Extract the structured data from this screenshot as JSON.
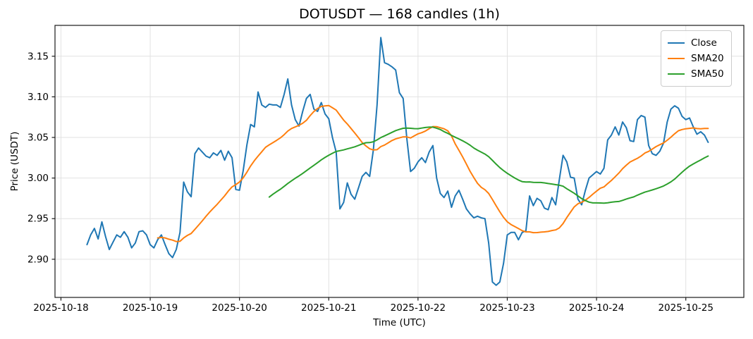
{
  "chart": {
    "title": "DOTUSDT — 168 candles (1h)",
    "xlabel": "Time (UTC)",
    "ylabel": "Price (USDT)"
  },
  "chart_data": {
    "type": "line",
    "title": "DOTUSDT — 168 candles (1h)",
    "xlabel": "Time (UTC)",
    "ylabel": "Price (USDT)",
    "x_unit": "hourly candles (1h each), 168 total",
    "legend_position": "upper right",
    "grid": true,
    "x_tick_labels": [
      "2025-10-18",
      "2025-10-19",
      "2025-10-20",
      "2025-10-21",
      "2025-10-22",
      "2025-10-23",
      "2025-10-24",
      "2025-10-25"
    ],
    "x_tick_hours": [
      -7,
      17,
      41,
      65,
      89,
      113,
      137,
      161
    ],
    "y_tick_labels": [
      "2.90",
      "2.95",
      "3.00",
      "3.05",
      "3.10",
      "3.15"
    ],
    "y_ticks": [
      2.9,
      2.95,
      3.0,
      3.05,
      3.1,
      3.15
    ],
    "xlim_hours": [
      -8.6,
      176.6
    ],
    "ylim": [
      2.853,
      3.188
    ],
    "series": [
      {
        "name": "Close",
        "color": "#1f77b4",
        "kind": "raw",
        "values": [
          2.918,
          2.93,
          2.938,
          2.925,
          2.946,
          2.928,
          2.912,
          2.921,
          2.93,
          2.927,
          2.934,
          2.927,
          2.914,
          2.92,
          2.934,
          2.935,
          2.93,
          2.918,
          2.914,
          2.924,
          2.93,
          2.918,
          2.907,
          2.902,
          2.912,
          2.933,
          2.995,
          2.983,
          2.977,
          3.03,
          3.037,
          3.032,
          3.027,
          3.025,
          3.031,
          3.028,
          3.034,
          3.022,
          3.033,
          3.025,
          2.986,
          2.985,
          3.009,
          3.041,
          3.066,
          3.063,
          3.106,
          3.09,
          3.087,
          3.091,
          3.09,
          3.09,
          3.087,
          3.103,
          3.122,
          3.09,
          3.072,
          3.064,
          3.082,
          3.098,
          3.103,
          3.085,
          3.082,
          3.093,
          3.079,
          3.073,
          3.05,
          3.032,
          2.962,
          2.97,
          2.994,
          2.98,
          2.974,
          2.988,
          3.002,
          3.007,
          3.002,
          3.035,
          3.09,
          3.173,
          3.142,
          3.14,
          3.137,
          3.133,
          3.105,
          3.098,
          3.048,
          3.008,
          3.012,
          3.02,
          3.025,
          3.019,
          3.032,
          3.04,
          3.0,
          2.981,
          2.976,
          2.984,
          2.964,
          2.978,
          2.985,
          2.974,
          2.962,
          2.956,
          2.951,
          2.953,
          2.951,
          2.95,
          2.92,
          2.872,
          2.868,
          2.872,
          2.895,
          2.93,
          2.933,
          2.933,
          2.924,
          2.933,
          2.935,
          2.978,
          2.966,
          2.975,
          2.972,
          2.963,
          2.961,
          2.976,
          2.967,
          2.998,
          3.028,
          3.02,
          3.001,
          3.0,
          2.974,
          2.967,
          2.985,
          3.0,
          3.004,
          3.008,
          3.005,
          3.012,
          3.047,
          3.053,
          3.063,
          3.053,
          3.069,
          3.062,
          3.046,
          3.045,
          3.072,
          3.077,
          3.075,
          3.04,
          3.03,
          3.028,
          3.033,
          3.043,
          3.069,
          3.085,
          3.089,
          3.086,
          3.076,
          3.072,
          3.074,
          3.063,
          3.054,
          3.057,
          3.053,
          3.044
        ]
      },
      {
        "name": "SMA20",
        "color": "#ff7f0e",
        "kind": "sma",
        "period": 20
      },
      {
        "name": "SMA50",
        "color": "#2ca02c",
        "kind": "sma",
        "period": 50
      }
    ]
  },
  "style_colors": {
    "grid": "#e2e2e2",
    "spine": "#1a1a1a",
    "tick_text": "#000000"
  }
}
